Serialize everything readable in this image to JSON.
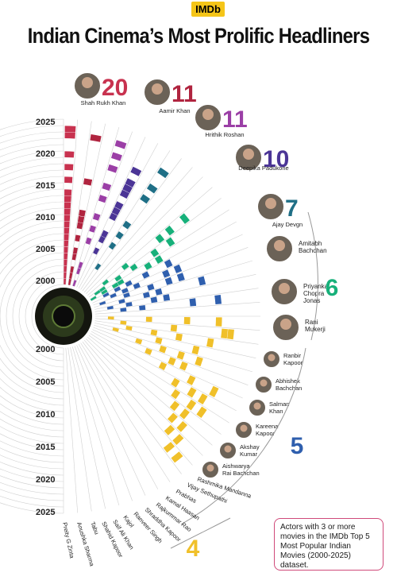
{
  "header": {
    "badge": "IMDb",
    "title": "Indian Cinema’s Most Prolific Headliners"
  },
  "note": "Actors with 3 or more movies in the IMDb Top 5 Most Popular Indian Movies (2000-2025) dataset.",
  "colors": {
    "Shah Rukh Khan": "#c8324f",
    "Aamir Khan": "#b0243f",
    "Hrithik Roshan": "#9b3fa6",
    "Deepika Padukone": "#4b3596",
    "Ajay Devgn": "#1f6f86",
    "green": "#17b07a",
    "blue": "#2f5fae",
    "yellow": "#f0c02a",
    "grid": "#d0d0d0"
  },
  "chart_data": {
    "type": "radial-timeline",
    "upper_axis_labels": [
      "2025",
      "2020",
      "2015",
      "2010",
      "2005",
      "2000"
    ],
    "lower_axis_labels": [
      "2000",
      "2005",
      "2010",
      "2015",
      "2020",
      "2025"
    ],
    "group_totals": [
      {
        "value": "6",
        "color": "#17b07a"
      },
      {
        "value": "5",
        "color": "#2f5fae"
      },
      {
        "value": "4",
        "color": "#f0c02a"
      }
    ],
    "top_actors": [
      {
        "name": "Shah Rukh Khan",
        "count": "20",
        "color": "#c8324f"
      },
      {
        "name": "Aamir Khan",
        "count": "11",
        "color": "#b0243f"
      },
      {
        "name": "Hrithik Roshan",
        "count": "11",
        "color": "#9b3fa6"
      },
      {
        "name": "Deepika Padukone",
        "count": "10",
        "color": "#4b3596"
      },
      {
        "name": "Ajay Devgn",
        "count": "7",
        "color": "#1f6f86"
      }
    ],
    "green_actors": [
      {
        "name": "Amitabh Bachchan",
        "lines": [
          "Amitabh",
          "Bachchan"
        ]
      },
      {
        "name": "Priyanka Chopra Jonas",
        "lines": [
          "Priyanka",
          "Chopra",
          "Jonas"
        ]
      },
      {
        "name": "Rani Mukerji",
        "lines": [
          "Rani",
          "Mukerji"
        ]
      }
    ],
    "blue_actors": [
      {
        "name": "Ranbir Kapoor",
        "lines": [
          "Ranbir",
          "Kapoor"
        ]
      },
      {
        "name": "Abhishek Bachchan",
        "lines": [
          "Abhishek",
          "Bachchan"
        ]
      },
      {
        "name": "Salman Khan",
        "lines": [
          "Salman",
          "Khan"
        ]
      },
      {
        "name": "Kareena Kapoor",
        "lines": [
          "Kareena",
          "Kapoor"
        ]
      },
      {
        "name": "Akshay Kumar",
        "lines": [
          "Akshay",
          "Kumar"
        ]
      },
      {
        "name": "Aishwarya Rai Bachchan",
        "lines": [
          "Aishwarya",
          "Rai Bachchan"
        ]
      }
    ],
    "yellow_actors": [
      "Preity G Zinta",
      "Anushka Sharma",
      "Tabu",
      "Shahid Kapoor",
      "Saif Ali Khan",
      "Kajol",
      "Ranveer Singh",
      "Shraddha Kapoor",
      "Rajkummar Rao",
      "Kamal Haasan",
      "Prabhas",
      "Vijay Sethupathi",
      "Rashmika Mandanna"
    ]
  }
}
